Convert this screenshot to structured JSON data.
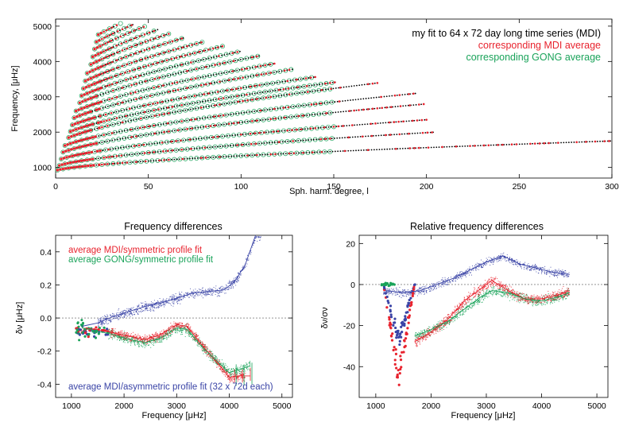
{
  "colors": {
    "mdi_red": "#e8232e",
    "gong_green": "#1aa35a",
    "blue": "#3a44a6",
    "black": "#000000"
  },
  "chart_data": [
    {
      "type": "scatter",
      "xlabel": "Sph. harm. degree, l",
      "ylabel": "Frequency, [μHz]",
      "xlim": [
        0,
        300
      ],
      "ylim": [
        700,
        5200
      ],
      "xticks": [
        0,
        50,
        100,
        150,
        200,
        250,
        300
      ],
      "yticks": [
        1000,
        2000,
        3000,
        4000,
        5000
      ],
      "legend_position": "top-right",
      "series": [
        {
          "name": "my fit to 64 x 72 day long time series (MDI)",
          "color": "#000000",
          "marker": "dot"
        },
        {
          "name": "corresponding MDI  average",
          "color": "#e8232e",
          "marker": "filled-circle"
        },
        {
          "name": "corresponding GONG average",
          "color": "#1aa35a",
          "marker": "open-circle"
        }
      ],
      "ridges": [
        {
          "n": 0,
          "l_max": 300,
          "nu_low": 900,
          "nu_high": 1750
        },
        {
          "n": 1,
          "l_max": 205,
          "nu_low": 1000,
          "nu_high": 2000
        },
        {
          "n": 2,
          "l_max": 200,
          "nu_low": 1150,
          "nu_high": 2350
        },
        {
          "n": 3,
          "l_max": 200,
          "nu_low": 1300,
          "nu_high": 2800
        },
        {
          "n": 4,
          "l_max": 195,
          "nu_low": 1450,
          "nu_high": 3100
        },
        {
          "n": 5,
          "l_max": 175,
          "nu_low": 1600,
          "nu_high": 3400
        },
        {
          "n": 6,
          "l_max": 152,
          "nu_low": 1750,
          "nu_high": 3420
        },
        {
          "n": 7,
          "l_max": 140,
          "nu_low": 1900,
          "nu_high": 3560
        },
        {
          "n": 8,
          "l_max": 128,
          "nu_low": 2050,
          "nu_high": 3780
        },
        {
          "n": 9,
          "l_max": 118,
          "nu_low": 2200,
          "nu_high": 3940
        },
        {
          "n": 10,
          "l_max": 110,
          "nu_low": 2350,
          "nu_high": 4160
        },
        {
          "n": 11,
          "l_max": 100,
          "nu_low": 2500,
          "nu_high": 4290
        },
        {
          "n": 12,
          "l_max": 90,
          "nu_low": 2650,
          "nu_high": 4430
        },
        {
          "n": 13,
          "l_max": 80,
          "nu_low": 2800,
          "nu_high": 4560
        },
        {
          "n": 14,
          "l_max": 70,
          "nu_low": 2950,
          "nu_high": 4680
        },
        {
          "n": 15,
          "l_max": 62,
          "nu_low": 3100,
          "nu_high": 4800
        },
        {
          "n": 16,
          "l_max": 55,
          "nu_low": 3250,
          "nu_high": 4900
        },
        {
          "n": 17,
          "l_max": 48,
          "nu_low": 3400,
          "nu_high": 4990
        },
        {
          "n": 18,
          "l_max": 42,
          "nu_low": 3550,
          "nu_high": 5050
        },
        {
          "n": 19,
          "l_max": 36,
          "nu_low": 3700,
          "nu_high": 5100
        }
      ]
    },
    {
      "type": "scatter",
      "title": "Frequency differences",
      "xlabel": "Frequency [μHz]",
      "ylabel": "δν [μHz]",
      "xlim": [
        700,
        5200
      ],
      "ylim": [
        -0.48,
        0.5
      ],
      "xticks": [
        1000,
        2000,
        3000,
        4000,
        5000
      ],
      "yticks": [
        -0.4,
        -0.2,
        0.0,
        0.2,
        0.4
      ],
      "annotations": [
        {
          "text": "average MDI/symmetric profile fit",
          "color": "#e8232e"
        },
        {
          "text": "average GONG/symmetric profile fit",
          "color": "#1aa35a"
        },
        {
          "text": "average MDI/asymmetric profile fit (32 x 72d each)",
          "color": "#3a44a6"
        }
      ],
      "series": [
        {
          "name": "red",
          "color": "#e8232e",
          "trend": {
            "x": [
              1200,
              1500,
              1800,
              2100,
              2400,
              2700,
              3000,
              3200,
              3500,
              3800,
              4000,
              4200,
              4400
            ],
            "y": [
              -0.06,
              -0.07,
              -0.09,
              -0.11,
              -0.13,
              -0.1,
              -0.04,
              -0.05,
              -0.17,
              -0.28,
              -0.36,
              -0.35,
              -0.35
            ]
          }
        },
        {
          "name": "green",
          "color": "#1aa35a",
          "trend": {
            "x": [
              1200,
              1500,
              1800,
              2100,
              2400,
              2700,
              3000,
              3200,
              3500,
              3800,
              4000,
              4200,
              4400
            ],
            "y": [
              -0.06,
              -0.08,
              -0.1,
              -0.13,
              -0.15,
              -0.12,
              -0.06,
              -0.07,
              -0.18,
              -0.27,
              -0.33,
              -0.31,
              -0.29
            ]
          }
        },
        {
          "name": "blue",
          "color": "#3a44a6",
          "trend": {
            "x": [
              1200,
              1500,
              1800,
              2100,
              2400,
              2700,
              3000,
              3300,
              3600,
              3900,
              4100,
              4300,
              4500
            ],
            "y": [
              -0.05,
              -0.03,
              0.01,
              0.04,
              0.07,
              0.09,
              0.12,
              0.15,
              0.16,
              0.17,
              0.22,
              0.32,
              0.5
            ]
          }
        }
      ]
    },
    {
      "type": "scatter",
      "title": "Relative frequency differences",
      "xlabel": "Frequency [μHz]",
      "ylabel": "δν/σν",
      "xlim": [
        700,
        5200
      ],
      "ylim": [
        -55,
        24
      ],
      "xticks": [
        1000,
        2000,
        3000,
        4000,
        5000
      ],
      "yticks": [
        -40,
        -20,
        0,
        20
      ],
      "series": [
        {
          "name": "red",
          "color": "#e8232e",
          "trend": {
            "x": [
              1700,
              2000,
              2300,
              2600,
              2900,
              3100,
              3400,
              3700,
              4000,
              4300,
              4500
            ],
            "y": [
              -28,
              -23,
              -17,
              -8,
              -2,
              2,
              -3,
              -7,
              -7,
              -5,
              -3
            ]
          }
        },
        {
          "name": "green",
          "color": "#1aa35a",
          "trend": {
            "x": [
              1700,
              2000,
              2300,
              2600,
              2900,
              3100,
              3400,
              3700,
              4000,
              4300,
              4500
            ],
            "y": [
              -25,
              -22,
              -18,
              -12,
              -6,
              -3,
              -4,
              -7,
              -8,
              -6,
              -4
            ]
          }
        },
        {
          "name": "blue",
          "color": "#3a44a6",
          "trend": {
            "x": [
              1200,
              1500,
              1800,
              2100,
              2400,
              2700,
              3000,
              3300,
              3600,
              3900,
              4200,
              4500
            ],
            "y": [
              -3,
              -4,
              -3,
              0,
              3,
              7,
              11,
              14,
              10,
              8,
              6,
              5
            ]
          }
        }
      ]
    }
  ]
}
